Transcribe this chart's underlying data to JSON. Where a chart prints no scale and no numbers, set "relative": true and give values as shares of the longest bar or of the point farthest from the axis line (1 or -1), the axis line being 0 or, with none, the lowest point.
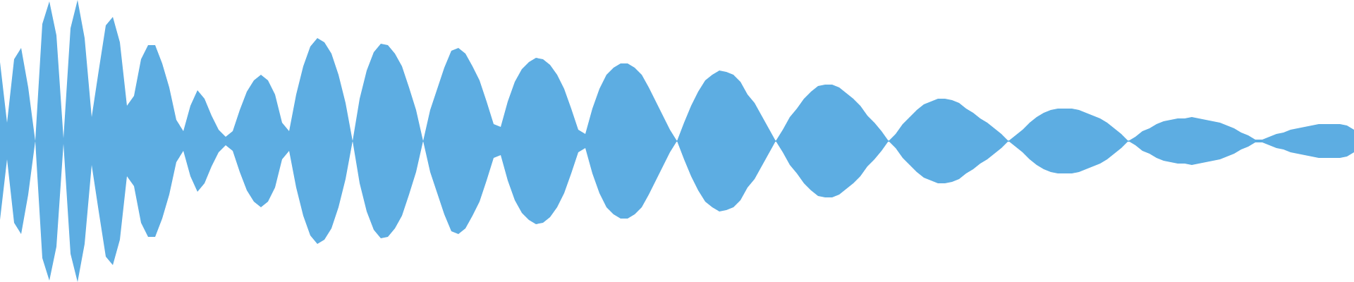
{
  "chart_data": {
    "type": "area",
    "relative": true,
    "categories": [
      null,
      null,
      null,
      null,
      null,
      null,
      null,
      null,
      null,
      null,
      null,
      null,
      null,
      null,
      null,
      null,
      null,
      null,
      null,
      null,
      null,
      null,
      null,
      null,
      null,
      null,
      null,
      null,
      null,
      null,
      null,
      null,
      null,
      null,
      null,
      null,
      null,
      null,
      null,
      null,
      null,
      null,
      null,
      null,
      null,
      null,
      null,
      null,
      null,
      null,
      null,
      null,
      null,
      null,
      null,
      null,
      null,
      null,
      null,
      null,
      null,
      null,
      null,
      null,
      null,
      null,
      null,
      null,
      null,
      null,
      null,
      null,
      null,
      null,
      null,
      null,
      null,
      null,
      null,
      null,
      null,
      null,
      null,
      null,
      null,
      null,
      null,
      null,
      null,
      null,
      null,
      null,
      null,
      null,
      null,
      null,
      null,
      null,
      null,
      null,
      null,
      null,
      null,
      null,
      null,
      null,
      null,
      null,
      null,
      null,
      null,
      null,
      null,
      null,
      null,
      null,
      null,
      null,
      null,
      null,
      null,
      null,
      null,
      null,
      null,
      null,
      null,
      null,
      null,
      null,
      null,
      null,
      null,
      null,
      null,
      null,
      null,
      null,
      null,
      null,
      null,
      null,
      null,
      null,
      null,
      null,
      null,
      null,
      null,
      null,
      null,
      null,
      null,
      null,
      null,
      null,
      null,
      null,
      null,
      null,
      null,
      null,
      null,
      null,
      null,
      null,
      null,
      null,
      null,
      null,
      null,
      null,
      null,
      null,
      null,
      null,
      null,
      null,
      null,
      null,
      null,
      null,
      null,
      null,
      null,
      null,
      null,
      null,
      null,
      null,
      null,
      null,
      null
    ],
    "ref_lines": [
      {
        "axis": "y",
        "value": 0,
        "color": "#5dade2"
      }
    ],
    "series": [
      {
        "color": "#5dade2",
        "values": [
          0.56,
          0.13,
          0.58,
          0.66,
          0.38,
          0,
          0.83,
          0.99,
          0.75,
          0.02,
          0.8,
          1,
          0.73,
          0.17,
          0.5,
          0.82,
          0.88,
          0.7,
          0.25,
          0.32,
          0.58,
          0.68,
          0.68,
          0.55,
          0.38,
          0.15,
          0.07,
          0.25,
          0.36,
          0.3,
          0.18,
          0.08,
          0.03,
          0.07,
          0.22,
          0.35,
          0.43,
          0.47,
          0.43,
          0.33,
          0.13,
          0.07,
          0.33,
          0.53,
          0.67,
          0.73,
          0.7,
          0.62,
          0.47,
          0.27,
          0,
          0.3,
          0.5,
          0.63,
          0.69,
          0.68,
          0.62,
          0.53,
          0.38,
          0.22,
          0,
          0.22,
          0.37,
          0.52,
          0.64,
          0.66,
          0.62,
          0.53,
          0.43,
          0.28,
          0.12,
          0.1,
          0.28,
          0.42,
          0.51,
          0.56,
          0.59,
          0.58,
          0.54,
          0.47,
          0.37,
          0.23,
          0.08,
          0.05,
          0.23,
          0.37,
          0.47,
          0.52,
          0.55,
          0.55,
          0.52,
          0.47,
          0.38,
          0.28,
          0.18,
          0.08,
          0,
          0.13,
          0.25,
          0.35,
          0.43,
          0.47,
          0.5,
          0.49,
          0.47,
          0.42,
          0.33,
          0.27,
          0.18,
          0.09,
          0,
          0.08,
          0.17,
          0.23,
          0.3,
          0.35,
          0.39,
          0.4,
          0.4,
          0.38,
          0.34,
          0.3,
          0.25,
          0.18,
          0.13,
          0.07,
          0,
          0.05,
          0.12,
          0.17,
          0.22,
          0.26,
          0.28,
          0.3,
          0.3,
          0.29,
          0.27,
          0.23,
          0.2,
          0.16,
          0.13,
          0.09,
          0.05,
          0,
          0.04,
          0.08,
          0.13,
          0.17,
          0.2,
          0.22,
          0.23,
          0.23,
          0.23,
          0.22,
          0.2,
          0.18,
          0.16,
          0.13,
          0.09,
          0.05,
          0,
          0.03,
          0.07,
          0.09,
          0.12,
          0.14,
          0.15,
          0.16,
          0.16,
          0.17,
          0.16,
          0.15,
          0.14,
          0.13,
          0.11,
          0.09,
          0.06,
          0.04,
          0.01,
          0.01,
          0.03,
          0.05,
          0.06,
          0.08,
          0.09,
          0.1,
          0.11,
          0.12,
          0.12,
          0.12,
          0.12,
          0.11,
          0.08
        ]
      },
      {
        "color": "#5dade2",
        "values": [
          -0.56,
          -0.13,
          -0.58,
          -0.66,
          -0.38,
          0,
          -0.83,
          -0.99,
          -0.75,
          -0.02,
          -0.8,
          -1,
          -0.73,
          -0.17,
          -0.5,
          -0.82,
          -0.88,
          -0.7,
          -0.25,
          -0.32,
          -0.58,
          -0.68,
          -0.68,
          -0.55,
          -0.38,
          -0.15,
          -0.07,
          -0.25,
          -0.36,
          -0.3,
          -0.18,
          -0.08,
          -0.03,
          -0.07,
          -0.22,
          -0.35,
          -0.43,
          -0.47,
          -0.43,
          -0.33,
          -0.13,
          -0.07,
          -0.33,
          -0.53,
          -0.67,
          -0.73,
          -0.7,
          -0.62,
          -0.47,
          -0.27,
          0,
          -0.3,
          -0.5,
          -0.63,
          -0.69,
          -0.68,
          -0.62,
          -0.53,
          -0.38,
          -0.22,
          0,
          -0.22,
          -0.37,
          -0.52,
          -0.64,
          -0.66,
          -0.62,
          -0.53,
          -0.43,
          -0.28,
          -0.12,
          -0.1,
          -0.28,
          -0.42,
          -0.51,
          -0.56,
          -0.59,
          -0.58,
          -0.54,
          -0.47,
          -0.37,
          -0.23,
          -0.08,
          -0.05,
          -0.23,
          -0.37,
          -0.47,
          -0.52,
          -0.55,
          -0.55,
          -0.52,
          -0.47,
          -0.38,
          -0.28,
          -0.18,
          -0.08,
          0,
          -0.13,
          -0.25,
          -0.35,
          -0.43,
          -0.47,
          -0.5,
          -0.49,
          -0.47,
          -0.42,
          -0.33,
          -0.27,
          -0.18,
          -0.09,
          0,
          -0.08,
          -0.17,
          -0.23,
          -0.3,
          -0.35,
          -0.39,
          -0.4,
          -0.4,
          -0.38,
          -0.34,
          -0.3,
          -0.25,
          -0.18,
          -0.13,
          -0.07,
          0,
          -0.05,
          -0.12,
          -0.17,
          -0.22,
          -0.26,
          -0.28,
          -0.3,
          -0.3,
          -0.29,
          -0.27,
          -0.23,
          -0.2,
          -0.16,
          -0.13,
          -0.09,
          -0.05,
          0,
          -0.04,
          -0.08,
          -0.13,
          -0.17,
          -0.2,
          -0.22,
          -0.23,
          -0.23,
          -0.23,
          -0.22,
          -0.2,
          -0.18,
          -0.16,
          -0.13,
          -0.09,
          -0.05,
          0,
          -0.03,
          -0.07,
          -0.09,
          -0.12,
          -0.14,
          -0.15,
          -0.16,
          -0.16,
          -0.17,
          -0.16,
          -0.15,
          -0.14,
          -0.13,
          -0.11,
          -0.09,
          -0.06,
          -0.04,
          -0.01,
          -0.01,
          -0.03,
          -0.05,
          -0.06,
          -0.08,
          -0.09,
          -0.1,
          -0.11,
          -0.12,
          -0.12,
          -0.12,
          -0.12,
          -0.11,
          -0.08
        ]
      }
    ]
  }
}
